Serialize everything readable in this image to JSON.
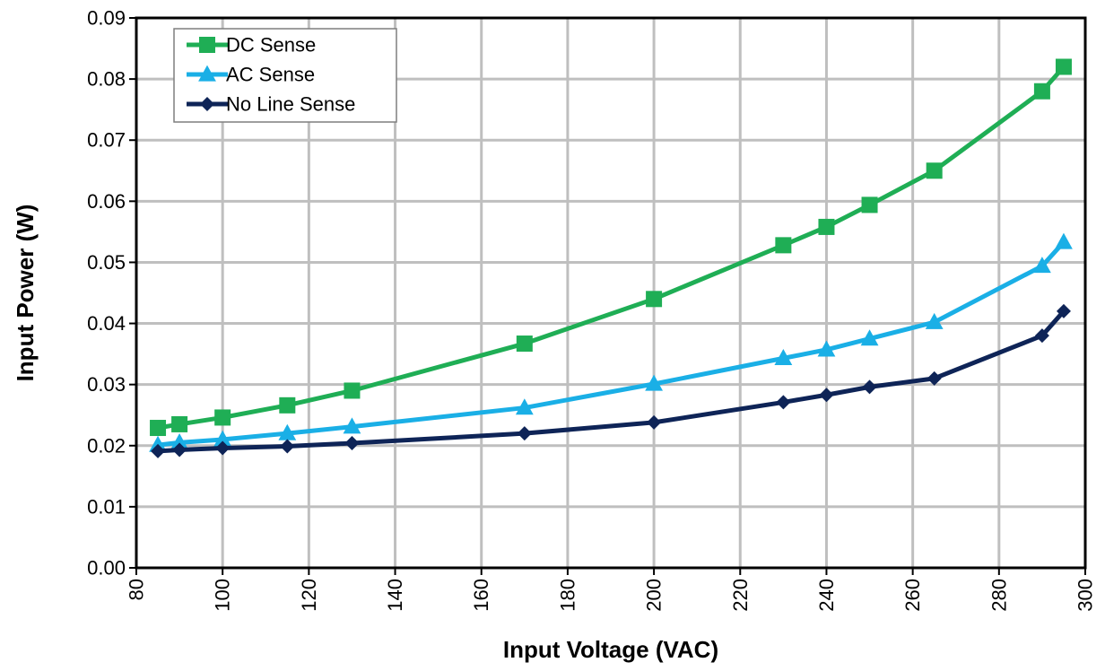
{
  "chart_data": {
    "type": "line",
    "title": "",
    "xlabel": "Input Voltage (VAC)",
    "ylabel": "Input Power (W)",
    "xlim": [
      80,
      300
    ],
    "ylim": [
      0,
      0.09
    ],
    "x_ticks": [
      "80",
      "100",
      "120",
      "140",
      "160",
      "180",
      "200",
      "220",
      "240",
      "260",
      "280",
      "300"
    ],
    "y_ticks": [
      "0.00",
      "0.01",
      "0.02",
      "0.03",
      "0.04",
      "0.05",
      "0.06",
      "0.07",
      "0.08",
      "0.09"
    ],
    "grid": true,
    "legend_position": "top-left",
    "series": [
      {
        "name": "DC Sense",
        "color": "#1fae55",
        "marker": "square",
        "x": [
          85,
          90,
          100,
          115,
          130,
          170,
          200,
          230,
          240,
          250,
          265,
          290,
          295
        ],
        "y": [
          0.0229,
          0.0235,
          0.0246,
          0.0266,
          0.029,
          0.0367,
          0.044,
          0.0528,
          0.0558,
          0.0594,
          0.065,
          0.078,
          0.082
        ]
      },
      {
        "name": "AC Sense",
        "color": "#1aafe6",
        "marker": "triangle",
        "x": [
          85,
          90,
          100,
          115,
          130,
          170,
          200,
          230,
          240,
          250,
          265,
          290,
          295
        ],
        "y": [
          0.0201,
          0.0205,
          0.021,
          0.022,
          0.0231,
          0.0262,
          0.0301,
          0.0343,
          0.0357,
          0.0375,
          0.0402,
          0.0494,
          0.0533
        ]
      },
      {
        "name": "No Line Sense",
        "color": "#0e2457",
        "marker": "diamond",
        "x": [
          85,
          90,
          100,
          115,
          130,
          170,
          200,
          230,
          240,
          250,
          265,
          290,
          295
        ],
        "y": [
          0.0191,
          0.0193,
          0.0196,
          0.0199,
          0.0204,
          0.022,
          0.0238,
          0.0271,
          0.0283,
          0.0296,
          0.031,
          0.038,
          0.042
        ]
      }
    ]
  }
}
